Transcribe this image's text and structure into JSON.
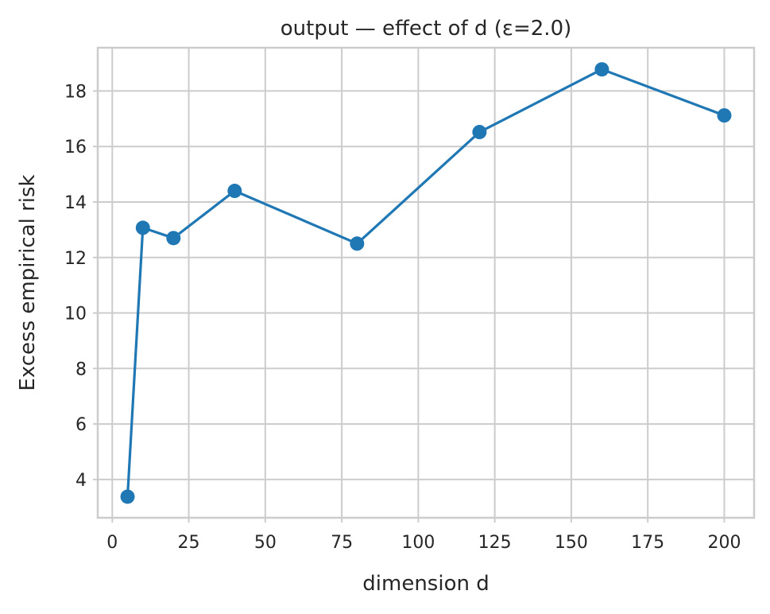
{
  "chart_data": {
    "type": "line",
    "title": "output — effect of d  (ε=2.0)",
    "xlabel": "dimension d",
    "ylabel": "Excess empirical risk",
    "xlim": [
      -4.75,
      209.75
    ],
    "ylim": [
      2.62,
      19.56
    ],
    "xticks": [
      0,
      25,
      50,
      75,
      100,
      125,
      150,
      175,
      200
    ],
    "yticks": [
      4,
      6,
      8,
      10,
      12,
      14,
      16,
      18
    ],
    "grid": true,
    "color": "#1f77b4",
    "marker": "circle",
    "series": [
      {
        "x": [
          5,
          10,
          20,
          40,
          80,
          120,
          160,
          200
        ],
        "values": [
          3.38,
          13.07,
          12.7,
          14.4,
          12.5,
          16.52,
          18.78,
          17.12
        ]
      }
    ]
  }
}
